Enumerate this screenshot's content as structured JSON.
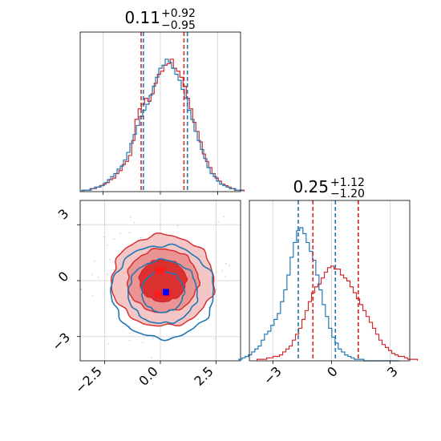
{
  "chart_data": [
    {
      "type": "histogram",
      "panel": "top-left",
      "title": {
        "value": "0.11",
        "plus": "+0.92",
        "minus": "−0.95"
      },
      "xlim": [
        -3.5,
        3.5
      ],
      "bin_width": 0.14,
      "series": [
        {
          "color": "#d62728",
          "quantiles": [
            -0.84,
            0.11,
            1.03
          ],
          "counts": [
            1,
            1,
            2,
            2,
            3,
            4,
            5,
            6,
            8,
            9,
            12,
            14,
            18,
            20,
            24,
            34,
            48,
            55,
            58,
            62,
            60,
            65,
            72,
            78,
            80,
            84,
            85,
            88,
            82,
            80,
            76,
            70,
            62,
            55,
            46,
            40,
            33,
            25,
            20,
            16,
            12,
            9,
            7,
            5,
            4,
            3,
            2,
            1,
            1,
            1
          ]
        },
        {
          "color": "#1f77b4",
          "quantiles": [
            -0.74,
            0.11,
            1.18
          ],
          "counts": [
            1,
            1,
            1,
            2,
            3,
            3,
            4,
            6,
            8,
            10,
            12,
            15,
            17,
            21,
            26,
            32,
            38,
            44,
            50,
            54,
            58,
            64,
            70,
            76,
            82,
            84,
            88,
            86,
            82,
            78,
            74,
            68,
            62,
            54,
            48,
            40,
            34,
            28,
            22,
            16,
            12,
            10,
            7,
            5,
            4,
            3,
            2,
            2,
            1,
            1
          ]
        }
      ]
    },
    {
      "type": "histogram",
      "panel": "bottom-right",
      "title": {
        "value": "0.25",
        "plus": "+1.12",
        "minus": "−1.20"
      },
      "xlim": [
        -4.2,
        4
      ],
      "bin_width": 0.164,
      "xticks": [
        "−3",
        "0",
        "3"
      ],
      "series": [
        {
          "color": "#d62728",
          "quantiles": [
            -0.95,
            0.25,
            1.37
          ],
          "counts": [
            1,
            1,
            1,
            2,
            2,
            3,
            3,
            4,
            6,
            8,
            10,
            14,
            18,
            22,
            28,
            34,
            40,
            46,
            50,
            52,
            56,
            60,
            63,
            64,
            62,
            62,
            58,
            56,
            54,
            50,
            46,
            42,
            38,
            34,
            30,
            26,
            22,
            18,
            14,
            11,
            9,
            7,
            5,
            4,
            3,
            3,
            2,
            1,
            1,
            1
          ]
        },
        {
          "color": "#1f77b4",
          "quantiles": [
            -1.7,
            -0.6,
            0.2
          ],
          "counts": [
            1,
            2,
            3,
            4,
            6,
            8,
            10,
            14,
            18,
            20,
            24,
            28,
            32,
            40,
            48,
            58,
            70,
            80,
            88,
            90,
            86,
            80,
            74,
            68,
            58,
            48,
            38,
            30,
            22,
            16,
            12,
            8,
            6,
            4,
            3,
            2,
            1,
            1,
            1,
            0,
            0,
            0,
            0,
            0,
            0,
            0,
            0,
            0,
            0,
            0
          ]
        }
      ]
    },
    {
      "type": "contour",
      "panel": "bottom-left",
      "xlim": [
        -3.6,
        3.6
      ],
      "ylim": [
        -4.3,
        4.3
      ],
      "xticks": [
        "−2.5",
        "0.0",
        "2.5"
      ],
      "yticks": [
        "3",
        "0",
        "−3"
      ],
      "series": [
        {
          "color": "#d62728",
          "center": [
            0.11,
            0.0
          ],
          "levels_sigma": [
            [
              1.05,
              1.12
            ],
            [
              1.6,
              1.7
            ],
            [
              2.3,
              2.45
            ]
          ],
          "filled": true,
          "highlight_points": [
            [
              -0.1,
              0.55
            ],
            [
              0.05,
              0.55
            ],
            [
              -0.1,
              -0.72
            ],
            [
              0.35,
              -0.72
            ]
          ]
        },
        {
          "color": "#1f77b4",
          "center": [
            0.11,
            -0.6
          ],
          "levels_sigma": [
            [
              0.95,
              1.1
            ],
            [
              1.55,
              1.7
            ],
            [
              2.3,
              2.5
            ]
          ],
          "filled": false,
          "highlight_points": [
            [
              0.25,
              -0.62
            ]
          ]
        }
      ]
    }
  ]
}
